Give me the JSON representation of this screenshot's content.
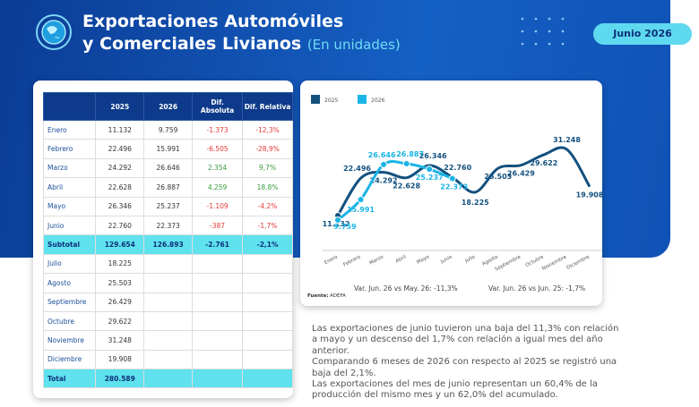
{
  "header": {
    "title_line1": "Exportaciones Automóviles",
    "title_line2": "y Comerciales Livianos",
    "subtitle": "(En unidades)",
    "badge": "Junio 2026"
  },
  "table": {
    "columns": [
      "2025",
      "2026",
      "Dif. Absoluta",
      "Dif. Relativa"
    ],
    "rows": [
      [
        "Enero",
        "11.132",
        "9.759",
        "-1.373",
        "-12,3%"
      ],
      [
        "Febrero",
        "22.496",
        "15.991",
        "-6.505",
        "-28,9%"
      ],
      [
        "Marzo",
        "24.292",
        "26.646",
        "2.354",
        "9,7%"
      ],
      [
        "Abril",
        "22.628",
        "26.887",
        "4.259",
        "18,8%"
      ],
      [
        "Mayo",
        "26.346",
        "25.237",
        "-1.109",
        "-4,2%"
      ],
      [
        "Junio",
        "22.760",
        "22.373",
        "-387",
        "-1,7%"
      ],
      [
        "Subtotal",
        "129.654",
        "126.893",
        "-2.761",
        "-2,1%"
      ],
      [
        "Julio",
        "18.225"
      ],
      [
        "Agosto",
        "25.503"
      ],
      [
        "Septiembre",
        "26.429"
      ],
      [
        "Octubre",
        "29.622"
      ],
      [
        "Noviembre",
        "31.248"
      ],
      [
        "Diciembre",
        "19.908"
      ],
      [
        "Total",
        "280.589"
      ]
    ]
  },
  "chart_data": {
    "type": "line",
    "categories": [
      "Enero",
      "Febrero",
      "Marzo",
      "Abril",
      "Mayo",
      "Junio",
      "Julio",
      "Agosto",
      "Septiembre",
      "Octubre",
      "Noviembre",
      "Diciembre"
    ],
    "series": [
      {
        "name": "2025",
        "color": "#13507e",
        "values": [
          11132,
          22496,
          24292,
          22628,
          26346,
          22760,
          18225,
          25503,
          26429,
          29622,
          31248,
          19908
        ],
        "value_labels": [
          "11.132",
          "22.496",
          "24.292",
          "22.628",
          "26.346",
          "22.760",
          "18.225",
          "25.503",
          "26.429",
          "29.622",
          "31.248",
          "19.908"
        ]
      },
      {
        "name": "2026",
        "color": "#1ab4e6",
        "values": [
          9759,
          15991,
          26646,
          26887,
          25237,
          22373,
          null,
          null,
          null,
          null,
          null,
          null
        ],
        "value_labels": [
          "9.759",
          "15.991",
          "26.646",
          "26.887",
          "25.237",
          "22.373",
          null,
          null,
          null,
          null,
          null,
          null
        ]
      }
    ],
    "annotations": [
      "Var. Jun. 26 vs May. 26: -11,3%",
      "Var. Jun. 26 vs Jun. 25: -1,7%"
    ],
    "source_label": "Fuente:",
    "source": "ADEFA"
  },
  "paragraphs": [
    "Las exportaciones de junio tuvieron una baja del 11,3% con relación a mayo y un descenso del 1,7% con relación a igual mes del año anterior.",
    "Comparando 6 meses de 2026 con respecto al 2025 se registró una baja del 2,1%.",
    "Las exportaciones del mes de junio representan un 60,4% de la producción del mismo mes y un 62,0% del acumulado."
  ]
}
